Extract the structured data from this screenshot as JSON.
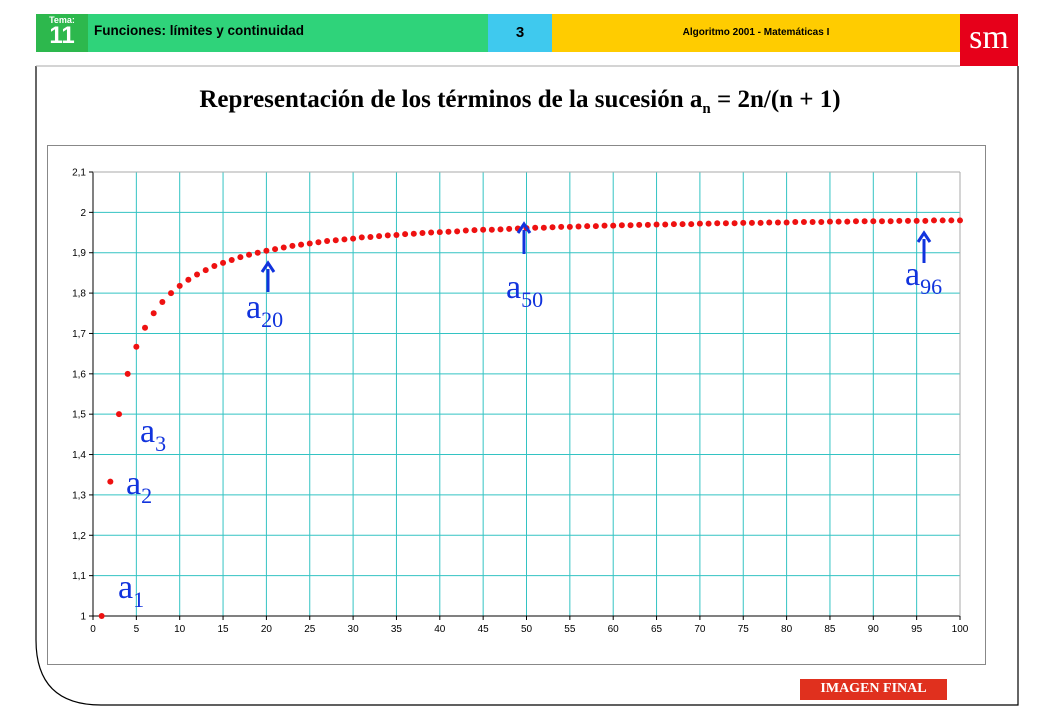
{
  "header": {
    "tema_label": "Tema:",
    "tema_number": "11",
    "topic": "Funciones: límites y continuidad",
    "page_number": "3",
    "book": "Algoritmo 2001 - Matemáticas I",
    "logo": "sm"
  },
  "title": {
    "prefix": "Representación de los términos de la sucesión a",
    "subscript": "n",
    "suffix": " = 2n/(n + 1)"
  },
  "badge": "IMAGEN FINAL",
  "colors": {
    "point": "#ee1111",
    "grid": "#33c3c3",
    "annotation": "#1133dd",
    "arrow": "#1133dd"
  },
  "chart_data": {
    "type": "scatter",
    "formula": "a_n = 2n/(n + 1)",
    "xlim": [
      0,
      100
    ],
    "ylim": [
      1,
      2.1
    ],
    "xticks": [
      "0",
      "5",
      "10",
      "15",
      "20",
      "25",
      "30",
      "35",
      "40",
      "45",
      "50",
      "55",
      "60",
      "65",
      "70",
      "75",
      "80",
      "85",
      "90",
      "95",
      "100"
    ],
    "yticks": [
      "1",
      "1,1",
      "1,2",
      "1,3",
      "1,4",
      "1,5",
      "1,6",
      "1,7",
      "1,8",
      "1,9",
      "2",
      "2,1"
    ],
    "grid": true,
    "series": [
      {
        "x": [
          1,
          2,
          3,
          4,
          5,
          6,
          7,
          8,
          9,
          10,
          11,
          12,
          13,
          14,
          15,
          16,
          17,
          18,
          19,
          20,
          21,
          22,
          23,
          24,
          25,
          26,
          27,
          28,
          29,
          30,
          31,
          32,
          33,
          34,
          35,
          36,
          37,
          38,
          39,
          40,
          41,
          42,
          43,
          44,
          45,
          46,
          47,
          48,
          49,
          50,
          51,
          52,
          53,
          54,
          55,
          56,
          57,
          58,
          59,
          60,
          61,
          62,
          63,
          64,
          65,
          66,
          67,
          68,
          69,
          70,
          71,
          72,
          73,
          74,
          75,
          76,
          77,
          78,
          79,
          80,
          81,
          82,
          83,
          84,
          85,
          86,
          87,
          88,
          89,
          90,
          91,
          92,
          93,
          94,
          95,
          96,
          97,
          98,
          99,
          100
        ],
        "values": [
          1.0,
          1.333,
          1.5,
          1.6,
          1.667,
          1.714,
          1.75,
          1.778,
          1.8,
          1.818,
          1.833,
          1.846,
          1.857,
          1.867,
          1.875,
          1.882,
          1.889,
          1.895,
          1.9,
          1.905,
          1.909,
          1.913,
          1.917,
          1.92,
          1.923,
          1.926,
          1.929,
          1.931,
          1.933,
          1.935,
          1.938,
          1.939,
          1.941,
          1.943,
          1.944,
          1.946,
          1.947,
          1.949,
          1.95,
          1.951,
          1.952,
          1.953,
          1.955,
          1.956,
          1.957,
          1.957,
          1.958,
          1.959,
          1.96,
          1.961,
          1.962,
          1.962,
          1.963,
          1.964,
          1.964,
          1.965,
          1.966,
          1.966,
          1.967,
          1.967,
          1.968,
          1.968,
          1.969,
          1.969,
          1.97,
          1.97,
          1.971,
          1.971,
          1.971,
          1.972,
          1.972,
          1.973,
          1.973,
          1.973,
          1.974,
          1.974,
          1.974,
          1.975,
          1.975,
          1.975,
          1.976,
          1.976,
          1.976,
          1.976,
          1.977,
          1.977,
          1.977,
          1.978,
          1.978,
          1.978,
          1.978,
          1.978,
          1.979,
          1.979,
          1.979,
          1.979,
          1.98,
          1.98,
          1.98,
          1.98
        ]
      }
    ],
    "annotations": [
      {
        "base": "a",
        "sub": "1",
        "n": 1,
        "arrow": false
      },
      {
        "base": "a",
        "sub": "2",
        "n": 2,
        "arrow": false
      },
      {
        "base": "a",
        "sub": "3",
        "n": 3,
        "arrow": false
      },
      {
        "base": "a",
        "sub": "20",
        "n": 20,
        "arrow": true
      },
      {
        "base": "a",
        "sub": "50",
        "n": 50,
        "arrow": true
      },
      {
        "base": "a",
        "sub": "96",
        "n": 96,
        "arrow": true
      }
    ]
  }
}
